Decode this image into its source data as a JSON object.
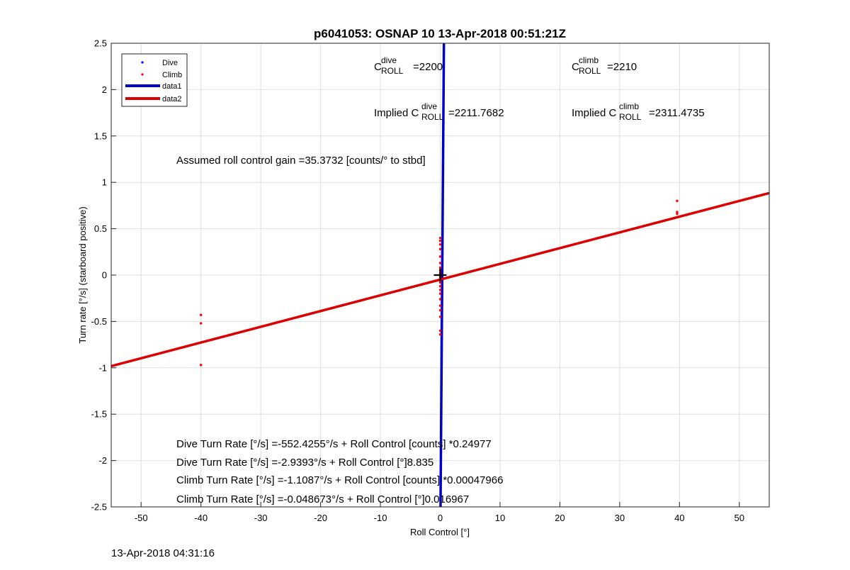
{
  "chart_data": {
    "type": "scatter",
    "title": "p6041053: OSNAP 10 13-Apr-2018 00:51:21Z",
    "xlabel": "Roll Control [°]",
    "ylabel": "Turn rate [°/s] (starboard positive)",
    "xlim": [
      -55,
      55
    ],
    "ylim": [
      -2.5,
      2.5
    ],
    "xticks": [
      -50,
      -40,
      -30,
      -20,
      -10,
      0,
      10,
      20,
      30,
      40,
      50
    ],
    "yticks": [
      -2.5,
      -2,
      -1.5,
      -1,
      -0.5,
      0,
      0.5,
      1,
      1.5,
      2,
      2.5
    ],
    "grid": true,
    "legend_position": "top-left",
    "series": [
      {
        "name": "Dive",
        "kind": "points",
        "color": "#0000ff",
        "points": []
      },
      {
        "name": "Climb",
        "kind": "points",
        "color": "#ff0000",
        "points": [
          [
            -40,
            -0.43
          ],
          [
            -40,
            -0.52
          ],
          [
            -40,
            -0.97
          ],
          [
            0,
            0.4
          ],
          [
            0,
            0.37
          ],
          [
            0,
            0.33
          ],
          [
            0,
            0.28
          ],
          [
            0,
            0.2
          ],
          [
            0,
            0.13
          ],
          [
            0,
            0.08
          ],
          [
            0,
            0.05
          ],
          [
            0,
            0.02
          ],
          [
            0,
            -0.02
          ],
          [
            0,
            -0.05
          ],
          [
            0,
            -0.08
          ],
          [
            0,
            -0.12
          ],
          [
            0,
            -0.16
          ],
          [
            0,
            -0.2
          ],
          [
            0,
            -0.26
          ],
          [
            0,
            -0.33
          ],
          [
            0,
            -0.38
          ],
          [
            0,
            -0.45
          ],
          [
            0,
            -0.6
          ],
          [
            0,
            -0.64
          ],
          [
            39.6,
            0.8
          ],
          [
            39.6,
            0.68
          ],
          [
            39.6,
            0.66
          ]
        ]
      },
      {
        "name": "data1",
        "kind": "line",
        "color": "#0000cc",
        "intercept": -2.9393,
        "slope": 8.835
      },
      {
        "name": "data2",
        "kind": "line",
        "color": "#dd0000",
        "intercept": -0.048673,
        "slope": 0.016967
      }
    ],
    "center_marker": [
      0,
      0
    ],
    "annotations": {
      "c_dive": {
        "base": "C",
        "sup": "dive",
        "sub": "ROLL",
        "value": "=2200"
      },
      "c_climb": {
        "base": "C",
        "sup": "climb",
        "sub": "ROLL",
        "value": "=2210"
      },
      "implied_dive": {
        "prefix": "Implied C",
        "sup": "dive",
        "sub": "ROLL",
        "value": "=2211.7682"
      },
      "implied_climb": {
        "prefix": "Implied C",
        "sup": "climb",
        "sub": "ROLL",
        "value": "=2311.4735"
      },
      "gain": "Assumed roll control gain =35.3732 [counts/° to stbd]",
      "eq1": "Dive Turn Rate [°/s] =-552.4255°/s + Roll Control [counts] *0.24977",
      "eq2": "Dive Turn Rate [°/s] =-2.9393°/s + Roll Control [°]8.835",
      "eq3": "Climb Turn Rate [°/s] =-1.1087°/s + Roll Control [counts] *0.00047966",
      "eq4": "Climb Turn Rate [°/s] =-0.048673°/s + Roll Control [°]0.016967"
    }
  },
  "timestamp": "13-Apr-2018 04:31:16"
}
